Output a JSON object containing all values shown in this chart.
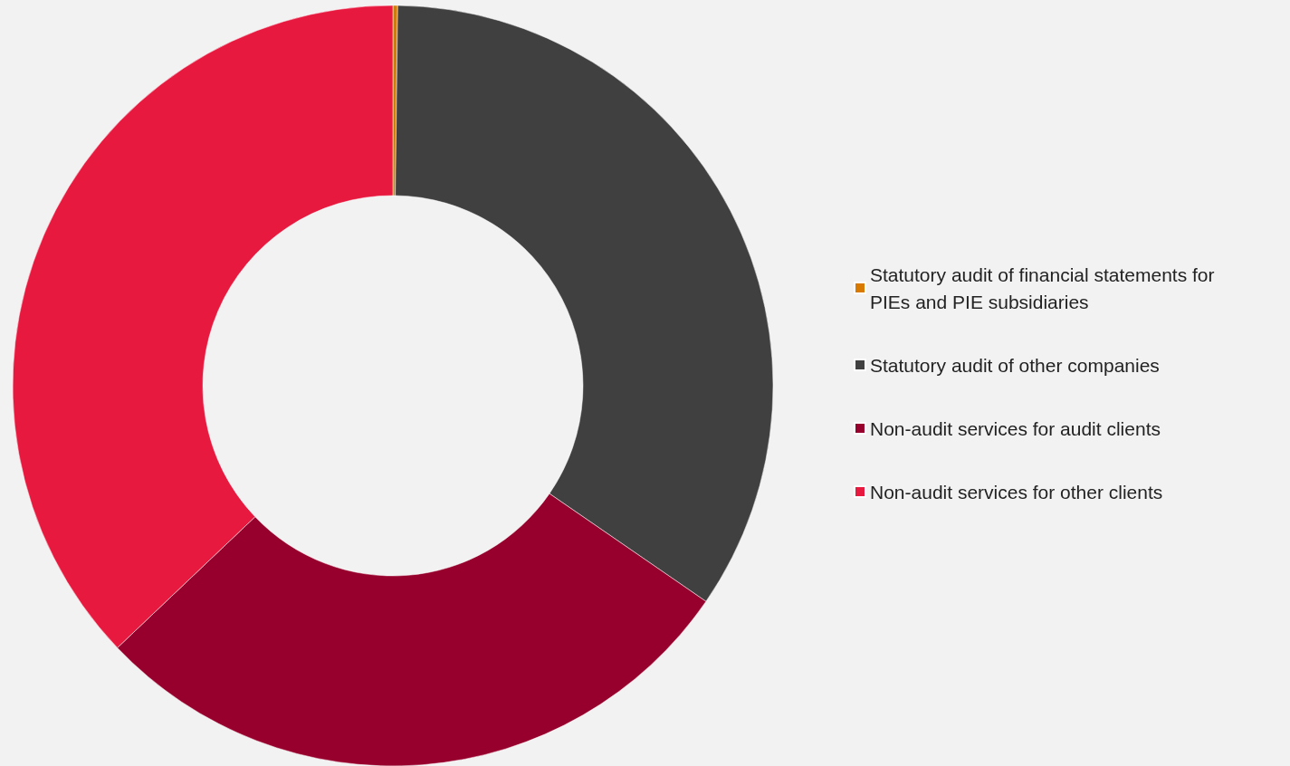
{
  "chart_data": {
    "type": "donut",
    "categories": [
      "Statutory audit of financial statements for PIEs and PIE subsidiaries",
      "Statutory audit of other companies",
      "Non-audit services for audit clients",
      "Non-audit services for other clients"
    ],
    "values": [
      0.2,
      34.4,
      28.3,
      37.1
    ],
    "colors": [
      "#d97a00",
      "#404040",
      "#97002d",
      "#e8193f"
    ],
    "legend": "right"
  }
}
